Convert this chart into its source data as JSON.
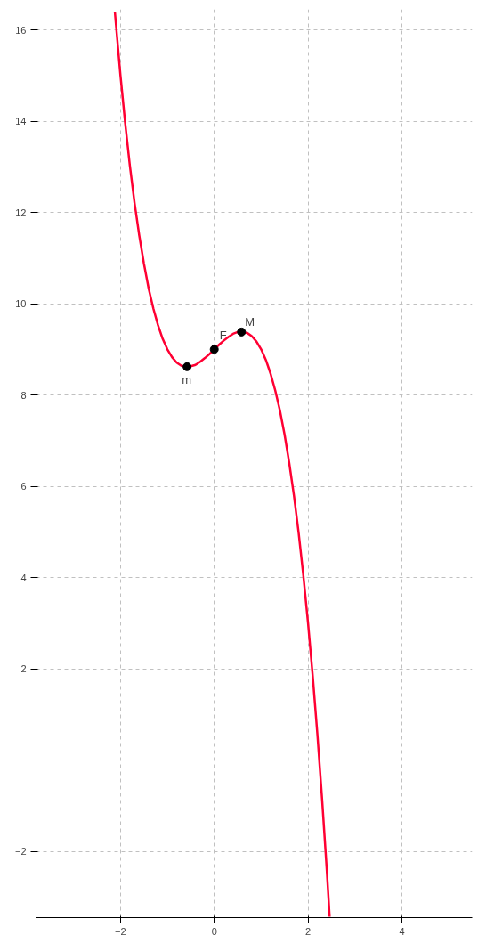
{
  "chart_data": {
    "type": "line",
    "xlim": [
      -3.8,
      5.5
    ],
    "ylim": [
      -3.45,
      16.45
    ],
    "xticks": [
      -2,
      0,
      2,
      4
    ],
    "yticks": [
      -2,
      2,
      4,
      6,
      8,
      10,
      12,
      14,
      16
    ],
    "grid": true,
    "series": [
      {
        "color": "#ff0033",
        "marker": "none",
        "line_style": "solid",
        "x": [
          -2.12,
          -2.0,
          -1.9,
          -1.8,
          -1.7,
          -1.6,
          -1.5,
          -1.4,
          -1.3,
          -1.2,
          -1.1,
          -1.0,
          -0.9,
          -0.8,
          -0.7,
          -0.6,
          -0.5,
          -0.4,
          -0.3,
          -0.2,
          -0.1,
          0.0,
          0.1,
          0.2,
          0.3,
          0.4,
          0.5,
          0.6,
          0.7,
          0.8,
          0.9,
          1.0,
          1.1,
          1.2,
          1.3,
          1.4,
          1.5,
          1.6,
          1.7,
          1.8,
          1.9,
          2.0,
          2.1,
          2.2,
          2.3,
          2.4,
          2.46
        ],
        "values": [
          16.4,
          15.0,
          13.96,
          13.03,
          12.21,
          11.5,
          10.88,
          10.34,
          9.9,
          9.53,
          9.23,
          9.0,
          8.83,
          8.71,
          8.64,
          8.62,
          8.63,
          8.66,
          8.73,
          8.81,
          8.9,
          9.0,
          9.1,
          9.19,
          9.27,
          9.34,
          9.38,
          9.38,
          9.36,
          9.29,
          9.17,
          9.0,
          8.77,
          8.47,
          8.1,
          7.66,
          7.13,
          6.5,
          5.79,
          4.97,
          4.04,
          3.0,
          1.84,
          0.55,
          -0.87,
          -2.42,
          -3.43
        ]
      },
      {
        "type": "scatter",
        "color": "#000000",
        "marker": "circle",
        "x": [
          -0.58,
          0.0,
          0.58
        ],
        "values": [
          8.62,
          9.0,
          9.38
        ]
      }
    ],
    "annotations": [
      {
        "text": "m",
        "x": -0.58,
        "y": 8.62
      },
      {
        "text": "F",
        "x": 0.0,
        "y": 9.0
      },
      {
        "text": "M",
        "x": 0.58,
        "y": 9.38
      }
    ]
  }
}
